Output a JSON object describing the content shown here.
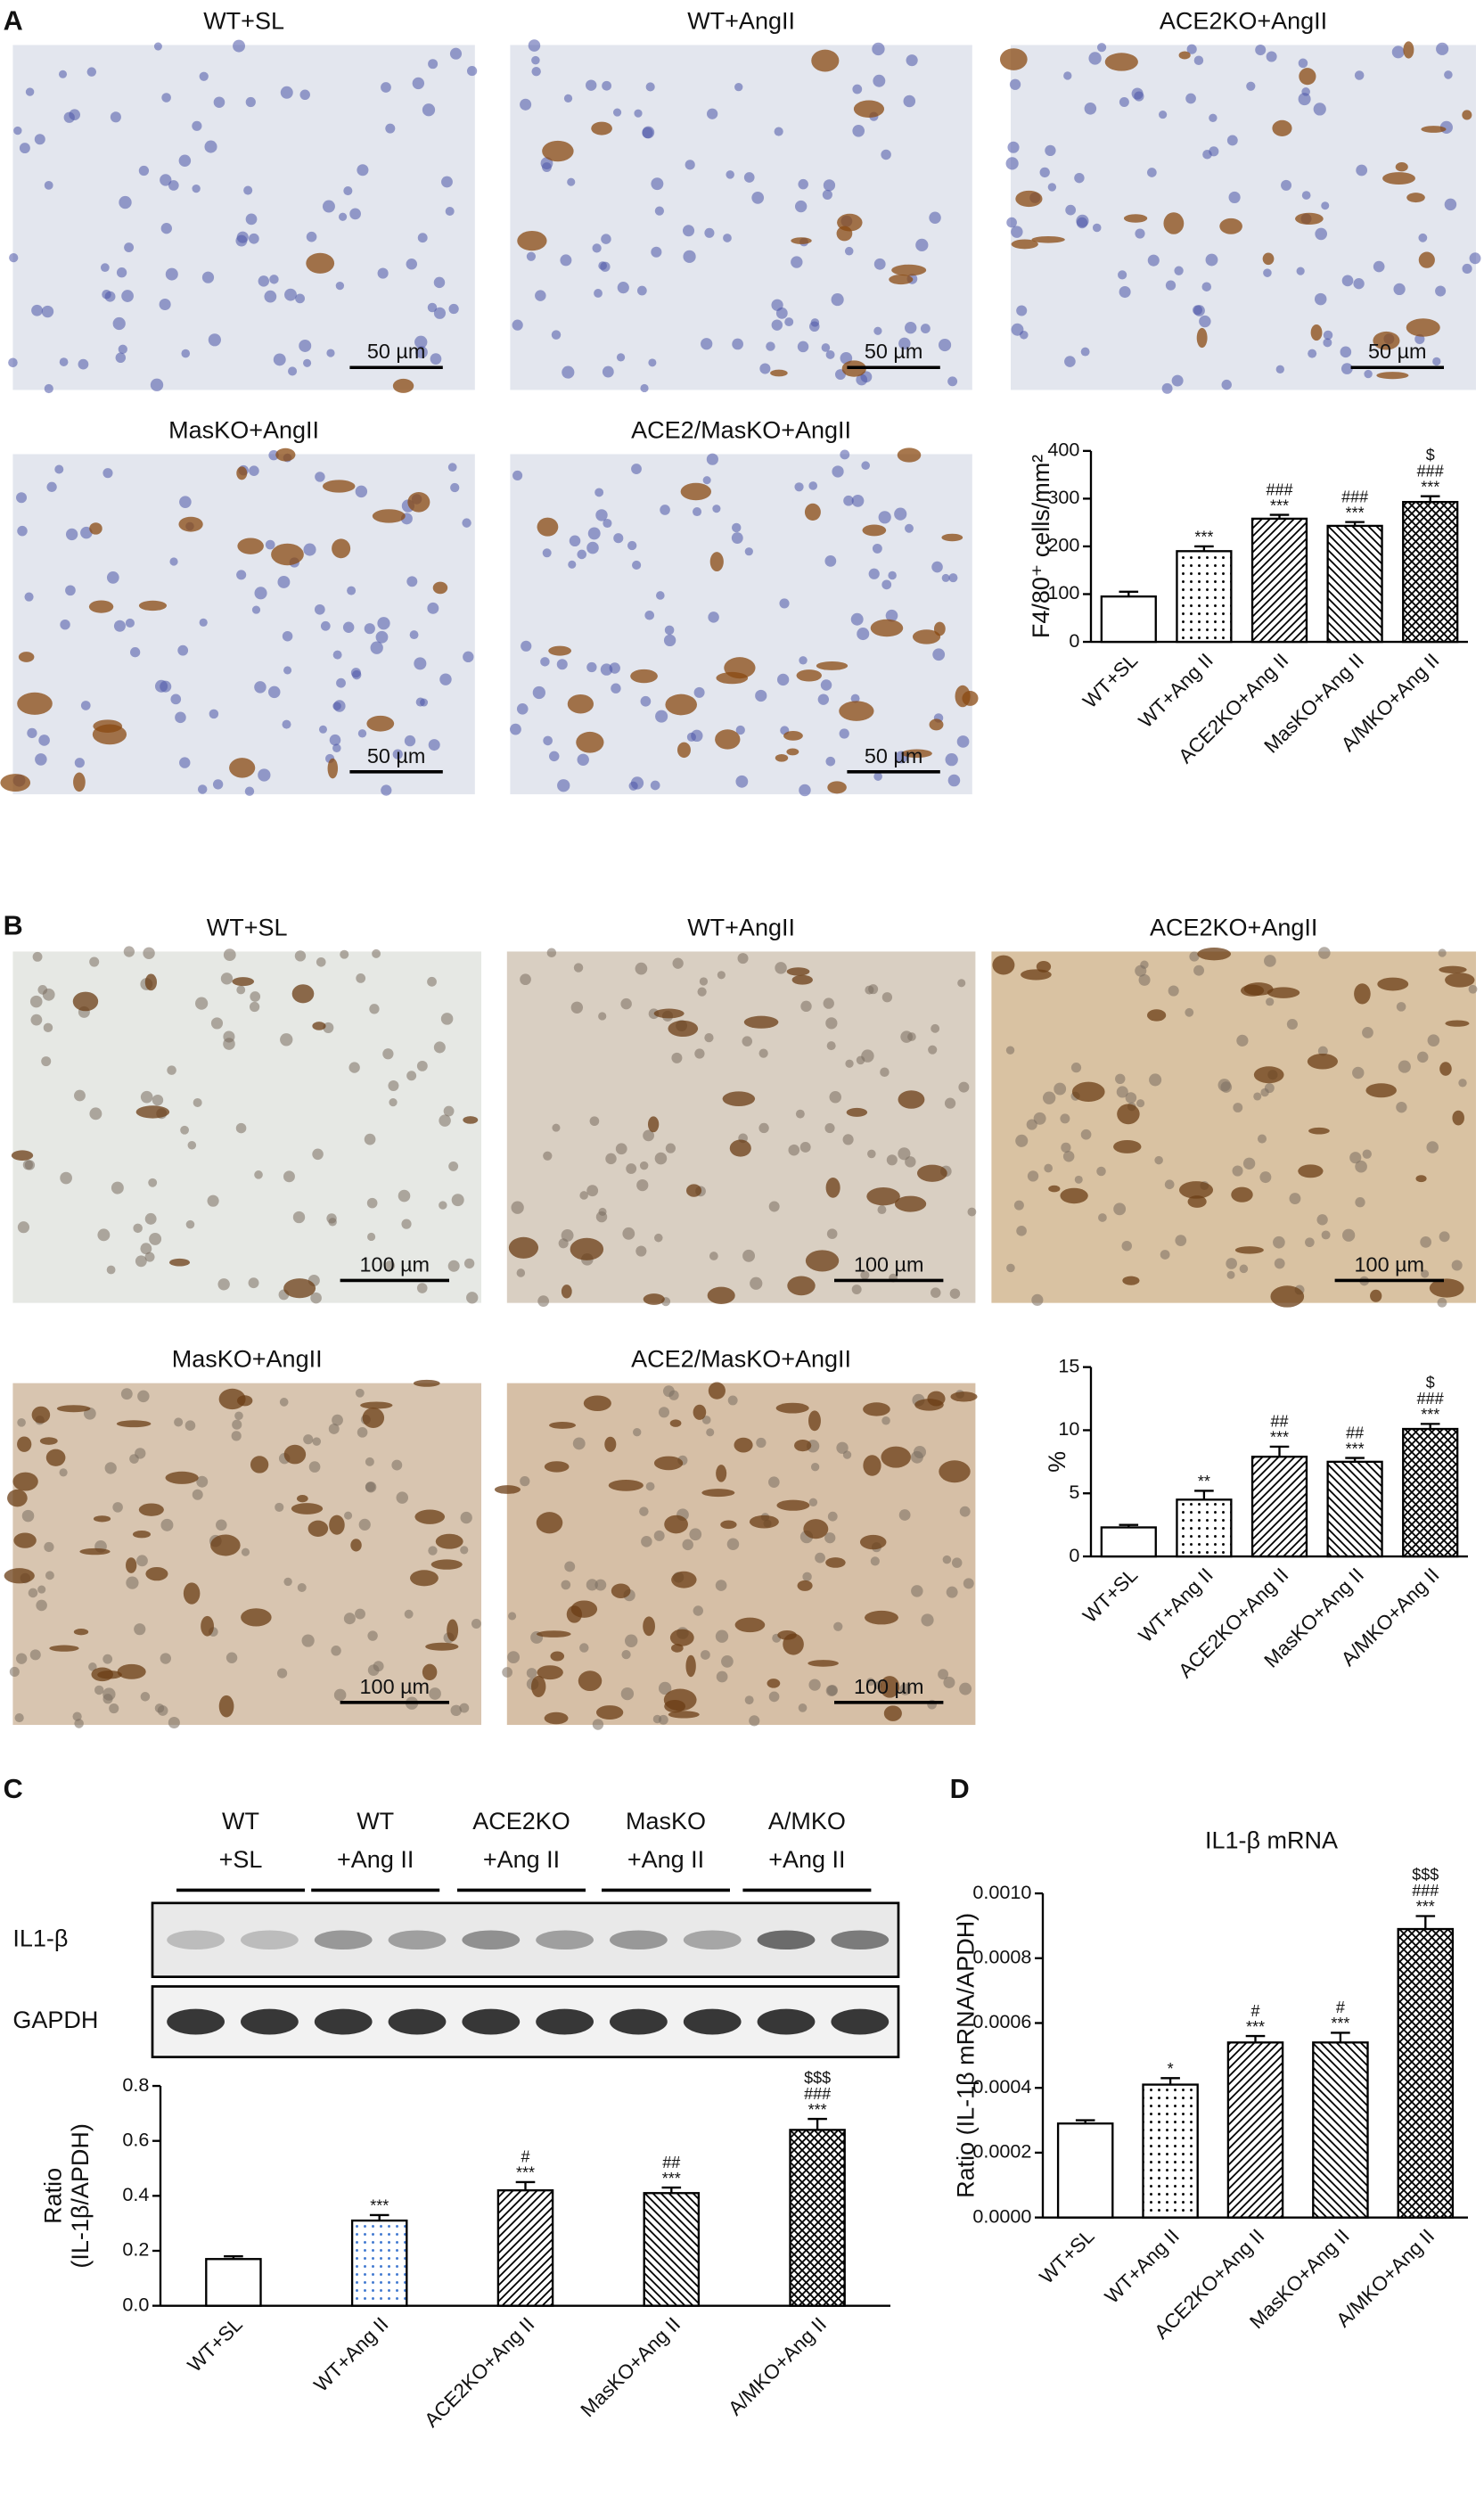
{
  "panel_labels": [
    "A",
    "B",
    "C",
    "D"
  ],
  "images_a": [
    {
      "label": "WT+SL",
      "scale": "50 µm"
    },
    {
      "label": "WT+AngII",
      "scale": "50 µm"
    },
    {
      "label": "ACE2KO+AngII",
      "scale": "50 µm"
    },
    {
      "label": "MasKO+AngII",
      "scale": "50 µm"
    },
    {
      "label": "ACE2/MasKO+AngII",
      "scale": "50 µm"
    }
  ],
  "images_b": [
    {
      "label": "WT+SL",
      "scale": "100 µm"
    },
    {
      "label": "WT+AngII",
      "scale": "100 µm"
    },
    {
      "label": "ACE2KO+AngII",
      "scale": "100 µm"
    },
    {
      "label": "MasKO+AngII",
      "scale": "100 µm"
    },
    {
      "label": "ACE2/MasKO+AngII",
      "scale": "100 µm"
    }
  ],
  "blot": {
    "columns": [
      [
        "WT",
        "+SL"
      ],
      [
        "WT",
        "+Ang II"
      ],
      [
        "ACE2KO",
        "+Ang II"
      ],
      [
        "MasKO",
        "+Ang II"
      ],
      [
        "A/MKO",
        "+Ang II"
      ]
    ],
    "rows": [
      "IL1-β",
      "GAPDH"
    ]
  },
  "chart_data": [
    {
      "type": "bar",
      "ylabel": "F4/80⁺ cells/mm²",
      "categories": [
        "WT+SL",
        "WT+Ang II",
        "ACE2KO+Ang II",
        "MasKO+Ang II",
        "A/MKO+Ang II"
      ],
      "values": [
        95,
        190,
        258,
        243,
        293
      ],
      "errors": [
        10,
        10,
        8,
        8,
        12
      ],
      "annotations": [
        [],
        [
          "***"
        ],
        [
          "***",
          "###"
        ],
        [
          "***",
          "###"
        ],
        [
          "***",
          "###",
          "$"
        ]
      ],
      "patterns": [
        "none",
        "dots",
        "diag",
        "diag2",
        "cross"
      ],
      "colors": [
        "#000000",
        "#000000",
        "#000000",
        "#000000",
        "#000000"
      ],
      "ylim": [
        0,
        400
      ],
      "yticks": [
        0,
        100,
        200,
        300,
        400
      ]
    },
    {
      "type": "bar",
      "ylabel": "%",
      "categories": [
        "WT+SL",
        "WT+Ang II",
        "ACE2KO+Ang II",
        "MasKO+Ang II",
        "A/MKO+Ang II"
      ],
      "values": [
        2.3,
        4.5,
        7.9,
        7.5,
        10.1
      ],
      "errors": [
        0.2,
        0.7,
        0.8,
        0.3,
        0.4
      ],
      "annotations": [
        [],
        [
          "**"
        ],
        [
          "***",
          "##"
        ],
        [
          "***",
          "##"
        ],
        [
          "***",
          "###",
          "$"
        ]
      ],
      "patterns": [
        "none",
        "dots",
        "diag",
        "diag2",
        "cross"
      ],
      "colors": [
        "#000000",
        "#000000",
        "#000000",
        "#000000",
        "#000000"
      ],
      "ylim": [
        0,
        15
      ],
      "yticks": [
        0,
        5,
        10,
        15
      ]
    },
    {
      "type": "bar",
      "ylabel": [
        "Ratio",
        "(IL-1β/APDH)"
      ],
      "categories": [
        "WT+SL",
        "WT+Ang II",
        "ACE2KO+Ang II",
        "MasKO+Ang II",
        "A/MKO+Ang II"
      ],
      "values": [
        0.17,
        0.31,
        0.42,
        0.41,
        0.64
      ],
      "errors": [
        0.01,
        0.02,
        0.03,
        0.02,
        0.04
      ],
      "annotations": [
        [],
        [
          "***"
        ],
        [
          "***",
          "#"
        ],
        [
          "***",
          "##"
        ],
        [
          "***",
          "###",
          "$$$"
        ]
      ],
      "patterns": [
        "none",
        "dots",
        "diag",
        "diag2",
        "cross"
      ],
      "colors": [
        "#000000",
        "#3f78d0",
        "#000000",
        "#000000",
        "#000000"
      ],
      "ylim": [
        0,
        0.8
      ],
      "yticks": [
        {
          "value": 0,
          "label": "0.0"
        },
        0.2,
        0.4,
        0.6,
        0.8
      ]
    },
    {
      "type": "bar",
      "title": "IL1-β mRNA",
      "ylabel": "Ratio (IL-1β mRNA/APDH)",
      "categories": [
        "WT+SL",
        "WT+Ang II",
        "ACE2KO+Ang II",
        "MasKO+Ang II",
        "A/MKO+Ang II"
      ],
      "values": [
        0.00029,
        0.00041,
        0.00054,
        0.00054,
        0.00089
      ],
      "errors": [
        1e-05,
        2e-05,
        2e-05,
        3e-05,
        4e-05
      ],
      "annotations": [
        [],
        [
          "*"
        ],
        [
          "***",
          "#"
        ],
        [
          "***",
          "#"
        ],
        [
          "***",
          "###",
          "$$$"
        ]
      ],
      "patterns": [
        "none",
        "dots",
        "diag",
        "diag2",
        "cross"
      ],
      "colors": [
        "#000000",
        "#000000",
        "#000000",
        "#000000",
        "#000000"
      ],
      "ylim": [
        0,
        0.001
      ],
      "yticks": [
        {
          "value": 0,
          "label": "0.0000"
        },
        {
          "value": 0.0002,
          "label": "0.0002"
        },
        {
          "value": 0.0004,
          "label": "0.0004"
        },
        {
          "value": 0.0006,
          "label": "0.0006"
        },
        {
          "value": 0.0008,
          "label": "0.0008"
        },
        {
          "value": 0.001,
          "label": "0.0010"
        }
      ]
    }
  ]
}
